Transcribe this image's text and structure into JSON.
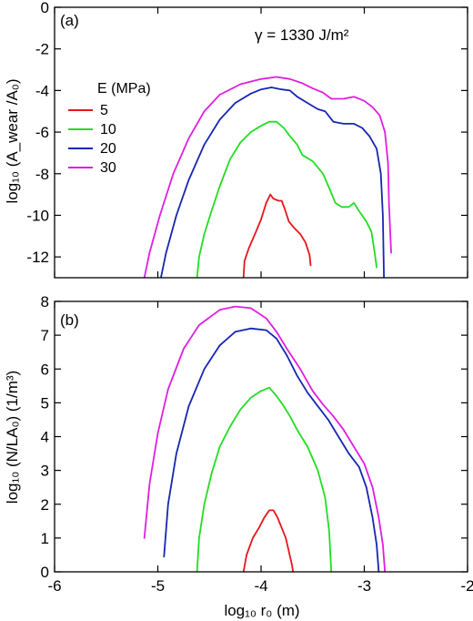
{
  "colors": {
    "5": "#e8141c",
    "10": "#22dd22",
    "20": "#1626b0",
    "30": "#e01ee0"
  },
  "legend": {
    "title": "E  (MPa)",
    "entries": [
      {
        "label": "5",
        "color": "#e8141c"
      },
      {
        "label": "10",
        "color": "#22dd22"
      },
      {
        "label": "20",
        "color": "#1626b0"
      },
      {
        "label": "30",
        "color": "#e01ee0"
      }
    ]
  },
  "annotation": "γ = 1330 J/m²",
  "chart_data": [
    {
      "type": "line",
      "panel_label": "(a)",
      "ylabel": "log₁₀ (A_wear /A₀)",
      "xlim": [
        -6,
        -2
      ],
      "ylim": [
        -13,
        0
      ],
      "yticks": [
        0,
        -2,
        -4,
        -6,
        -8,
        -10,
        -12
      ],
      "xticks": [
        -6,
        -5,
        -4,
        -3,
        -2
      ],
      "show_xtick_labels": false,
      "series": [
        {
          "name": "5",
          "color": "#e8141c",
          "points": [
            [
              -4.17,
              -13
            ],
            [
              -4.16,
              -12.2
            ],
            [
              -4.12,
              -11.6
            ],
            [
              -4.05,
              -10.8
            ],
            [
              -4.0,
              -10.2
            ],
            [
              -3.95,
              -9.4
            ],
            [
              -3.91,
              -9.0
            ],
            [
              -3.88,
              -9.2
            ],
            [
              -3.83,
              -9.3
            ],
            [
              -3.8,
              -9.3
            ],
            [
              -3.77,
              -9.7
            ],
            [
              -3.73,
              -10.3
            ],
            [
              -3.68,
              -10.6
            ],
            [
              -3.62,
              -10.9
            ],
            [
              -3.57,
              -11.3
            ],
            [
              -3.53,
              -11.9
            ],
            [
              -3.52,
              -12.4
            ]
          ]
        },
        {
          "name": "10",
          "color": "#22dd22",
          "points": [
            [
              -4.62,
              -13
            ],
            [
              -4.6,
              -12.0
            ],
            [
              -4.55,
              -10.9
            ],
            [
              -4.48,
              -9.8
            ],
            [
              -4.4,
              -8.6
            ],
            [
              -4.3,
              -7.3
            ],
            [
              -4.2,
              -6.5
            ],
            [
              -4.1,
              -6.0
            ],
            [
              -4.0,
              -5.7
            ],
            [
              -3.92,
              -5.5
            ],
            [
              -3.85,
              -5.5
            ],
            [
              -3.78,
              -5.8
            ],
            [
              -3.72,
              -6.2
            ],
            [
              -3.65,
              -6.6
            ],
            [
              -3.6,
              -7.1
            ],
            [
              -3.5,
              -7.4
            ],
            [
              -3.4,
              -8.0
            ],
            [
              -3.33,
              -8.8
            ],
            [
              -3.28,
              -9.4
            ],
            [
              -3.22,
              -9.6
            ],
            [
              -3.15,
              -9.6
            ],
            [
              -3.1,
              -9.4
            ],
            [
              -3.05,
              -9.8
            ],
            [
              -2.98,
              -10.3
            ],
            [
              -2.93,
              -10.8
            ],
            [
              -2.9,
              -11.8
            ],
            [
              -2.88,
              -12.5
            ]
          ]
        },
        {
          "name": "20",
          "color": "#1626b0",
          "points": [
            [
              -4.97,
              -13
            ],
            [
              -4.92,
              -11.8
            ],
            [
              -4.82,
              -10.0
            ],
            [
              -4.7,
              -8.3
            ],
            [
              -4.55,
              -6.6
            ],
            [
              -4.4,
              -5.4
            ],
            [
              -4.25,
              -4.6
            ],
            [
              -4.1,
              -4.15
            ],
            [
              -4.0,
              -3.95
            ],
            [
              -3.9,
              -3.85
            ],
            [
              -3.8,
              -3.95
            ],
            [
              -3.72,
              -4.0
            ],
            [
              -3.65,
              -4.3
            ],
            [
              -3.55,
              -4.6
            ],
            [
              -3.45,
              -4.9
            ],
            [
              -3.38,
              -5.0
            ],
            [
              -3.3,
              -5.5
            ],
            [
              -3.2,
              -5.6
            ],
            [
              -3.1,
              -5.6
            ],
            [
              -3.02,
              -5.8
            ],
            [
              -2.95,
              -6.2
            ],
            [
              -2.88,
              -6.8
            ],
            [
              -2.84,
              -8.0
            ],
            [
              -2.82,
              -10.0
            ],
            [
              -2.81,
              -13
            ]
          ]
        },
        {
          "name": "30",
          "color": "#e01ee0",
          "points": [
            [
              -5.13,
              -13
            ],
            [
              -5.08,
              -11.8
            ],
            [
              -4.98,
              -10.0
            ],
            [
              -4.85,
              -8.0
            ],
            [
              -4.7,
              -6.3
            ],
            [
              -4.55,
              -5.0
            ],
            [
              -4.4,
              -4.2
            ],
            [
              -4.2,
              -3.7
            ],
            [
              -4.0,
              -3.45
            ],
            [
              -3.85,
              -3.35
            ],
            [
              -3.72,
              -3.45
            ],
            [
              -3.6,
              -3.65
            ],
            [
              -3.5,
              -3.9
            ],
            [
              -3.4,
              -4.1
            ],
            [
              -3.32,
              -4.4
            ],
            [
              -3.2,
              -4.4
            ],
            [
              -3.1,
              -4.3
            ],
            [
              -3.0,
              -4.5
            ],
            [
              -2.92,
              -4.8
            ],
            [
              -2.85,
              -5.2
            ],
            [
              -2.8,
              -6.0
            ],
            [
              -2.77,
              -7.5
            ],
            [
              -2.76,
              -9.5
            ],
            [
              -2.74,
              -11.8
            ]
          ]
        }
      ]
    },
    {
      "type": "line",
      "panel_label": "(b)",
      "ylabel": "log₁₀ (N/LA₀)  (1/m³)",
      "xlabel": "log₁₀ r₀  (m)",
      "xlim": [
        -6,
        -2
      ],
      "ylim": [
        0,
        8
      ],
      "yticks": [
        0,
        1,
        2,
        3,
        4,
        5,
        6,
        7,
        8
      ],
      "xticks": [
        -6,
        -5,
        -4,
        -3,
        -2
      ],
      "series": [
        {
          "name": "5",
          "color": "#e8141c",
          "points": [
            [
              -4.17,
              0
            ],
            [
              -4.14,
              0.5
            ],
            [
              -4.08,
              1.0
            ],
            [
              -4.02,
              1.3
            ],
            [
              -3.97,
              1.6
            ],
            [
              -3.92,
              1.82
            ],
            [
              -3.88,
              1.82
            ],
            [
              -3.84,
              1.6
            ],
            [
              -3.8,
              1.3
            ],
            [
              -3.76,
              1.0
            ],
            [
              -3.73,
              0.6
            ],
            [
              -3.7,
              0.2
            ],
            [
              -3.69,
              0
            ]
          ]
        },
        {
          "name": "10",
          "color": "#22dd22",
          "points": [
            [
              -4.62,
              0
            ],
            [
              -4.6,
              1.0
            ],
            [
              -4.55,
              2.0
            ],
            [
              -4.48,
              2.9
            ],
            [
              -4.4,
              3.7
            ],
            [
              -4.3,
              4.3
            ],
            [
              -4.2,
              4.8
            ],
            [
              -4.1,
              5.15
            ],
            [
              -4.0,
              5.35
            ],
            [
              -3.92,
              5.45
            ],
            [
              -3.85,
              5.2
            ],
            [
              -3.78,
              4.9
            ],
            [
              -3.72,
              4.6
            ],
            [
              -3.65,
              4.2
            ],
            [
              -3.55,
              3.7
            ],
            [
              -3.45,
              3.0
            ],
            [
              -3.38,
              2.2
            ],
            [
              -3.34,
              1.2
            ],
            [
              -3.32,
              0
            ]
          ]
        },
        {
          "name": "20",
          "color": "#1626b0",
          "points": [
            [
              -4.94,
              0.45
            ],
            [
              -4.9,
              2.0
            ],
            [
              -4.82,
              3.5
            ],
            [
              -4.7,
              4.9
            ],
            [
              -4.55,
              6.0
            ],
            [
              -4.4,
              6.7
            ],
            [
              -4.25,
              7.1
            ],
            [
              -4.1,
              7.2
            ],
            [
              -3.95,
              7.15
            ],
            [
              -3.85,
              6.9
            ],
            [
              -3.75,
              6.4
            ],
            [
              -3.65,
              5.8
            ],
            [
              -3.55,
              5.3
            ],
            [
              -3.45,
              4.9
            ],
            [
              -3.35,
              4.5
            ],
            [
              -3.25,
              4.0
            ],
            [
              -3.15,
              3.5
            ],
            [
              -3.05,
              3.1
            ],
            [
              -2.98,
              2.5
            ],
            [
              -2.92,
              1.6
            ],
            [
              -2.88,
              0.8
            ],
            [
              -2.86,
              0
            ]
          ]
        },
        {
          "name": "30",
          "color": "#e01ee0",
          "points": [
            [
              -5.13,
              1.0
            ],
            [
              -5.08,
              2.6
            ],
            [
              -5.0,
              4.1
            ],
            [
              -4.9,
              5.4
            ],
            [
              -4.75,
              6.6
            ],
            [
              -4.6,
              7.3
            ],
            [
              -4.4,
              7.75
            ],
            [
              -4.25,
              7.85
            ],
            [
              -4.1,
              7.8
            ],
            [
              -3.95,
              7.5
            ],
            [
              -3.85,
              7.1
            ],
            [
              -3.75,
              6.6
            ],
            [
              -3.62,
              6.0
            ],
            [
              -3.5,
              5.35
            ],
            [
              -3.4,
              4.95
            ],
            [
              -3.3,
              4.6
            ],
            [
              -3.2,
              4.2
            ],
            [
              -3.1,
              3.7
            ],
            [
              -3.0,
              3.2
            ],
            [
              -2.92,
              2.5
            ],
            [
              -2.86,
              1.6
            ],
            [
              -2.82,
              0.8
            ],
            [
              -2.8,
              0
            ]
          ]
        }
      ]
    }
  ]
}
